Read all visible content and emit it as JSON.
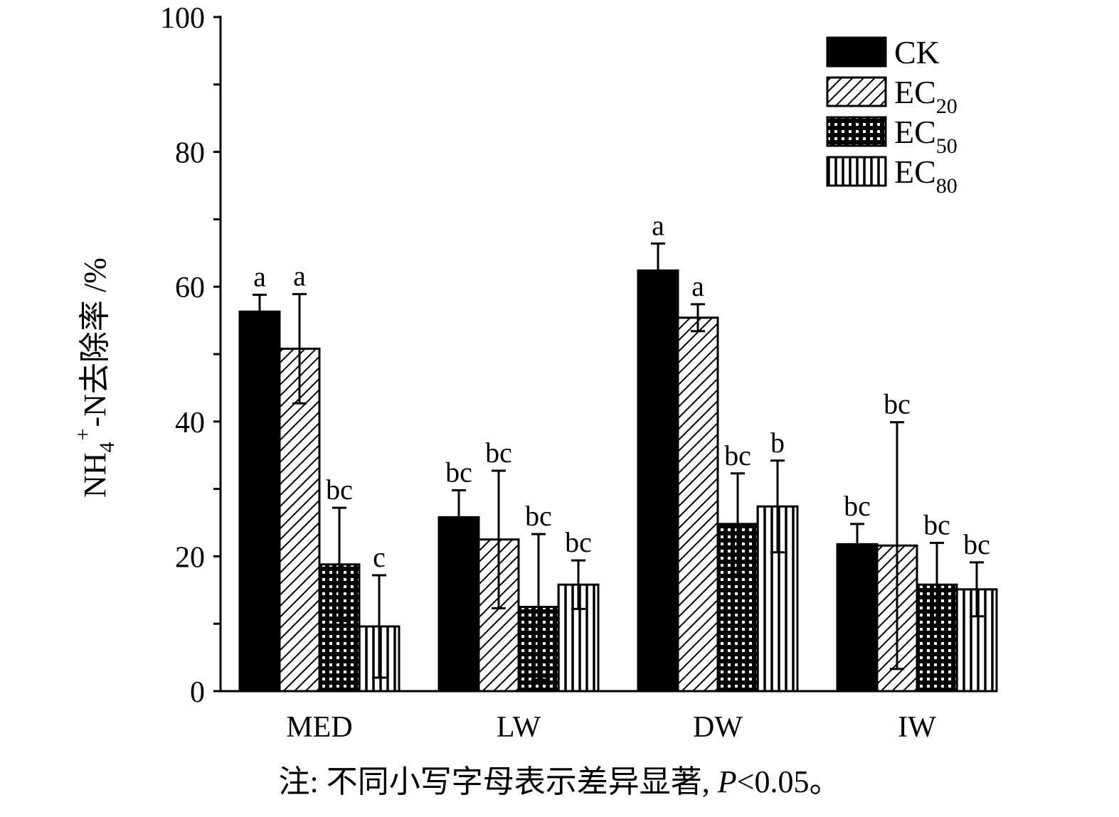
{
  "chart_data": {
    "type": "bar",
    "categories": [
      "MED",
      "LW",
      "DW",
      "IW"
    ],
    "ylim": [
      0,
      100
    ],
    "yticks": [
      "0",
      "20",
      "40",
      "60",
      "80",
      "100"
    ],
    "ylabel": {
      "prefix": "NH",
      "sub": "4",
      "sup": "+",
      "suffix": "-N去除率 /%"
    },
    "series": [
      {
        "name": "CK",
        "sub": "",
        "pattern": "solid",
        "values": [
          56.3,
          25.8,
          62.4,
          21.8
        ],
        "errors": [
          2.5,
          4.0,
          4.0,
          3.0
        ],
        "letters": [
          "a",
          "bc",
          "a",
          "bc"
        ]
      },
      {
        "name": "EC",
        "sub": "20",
        "pattern": "diagonal",
        "values": [
          50.8,
          22.5,
          55.4,
          21.6
        ],
        "errors": [
          8.1,
          10.2,
          2.0,
          18.3
        ],
        "letters": [
          "a",
          "bc",
          "a",
          "bc"
        ]
      },
      {
        "name": "EC",
        "sub": "50",
        "pattern": "crosshatch",
        "values": [
          18.8,
          12.5,
          24.8,
          15.8
        ],
        "errors": [
          8.4,
          10.8,
          7.5,
          6.2
        ],
        "letters": [
          "bc",
          "bc",
          "bc",
          "bc"
        ]
      },
      {
        "name": "EC",
        "sub": "80",
        "pattern": "vertical",
        "values": [
          9.6,
          15.8,
          27.4,
          15.1
        ],
        "errors": [
          7.6,
          3.6,
          6.8,
          4.0
        ],
        "letters": [
          "c",
          "bc",
          "b",
          "bc"
        ]
      }
    ],
    "legend_position": "top-right",
    "grid": false
  },
  "note": {
    "prefix": "注: 不同小写字母表示差异显著, ",
    "p": "P",
    "suffix": "<0.05。"
  }
}
